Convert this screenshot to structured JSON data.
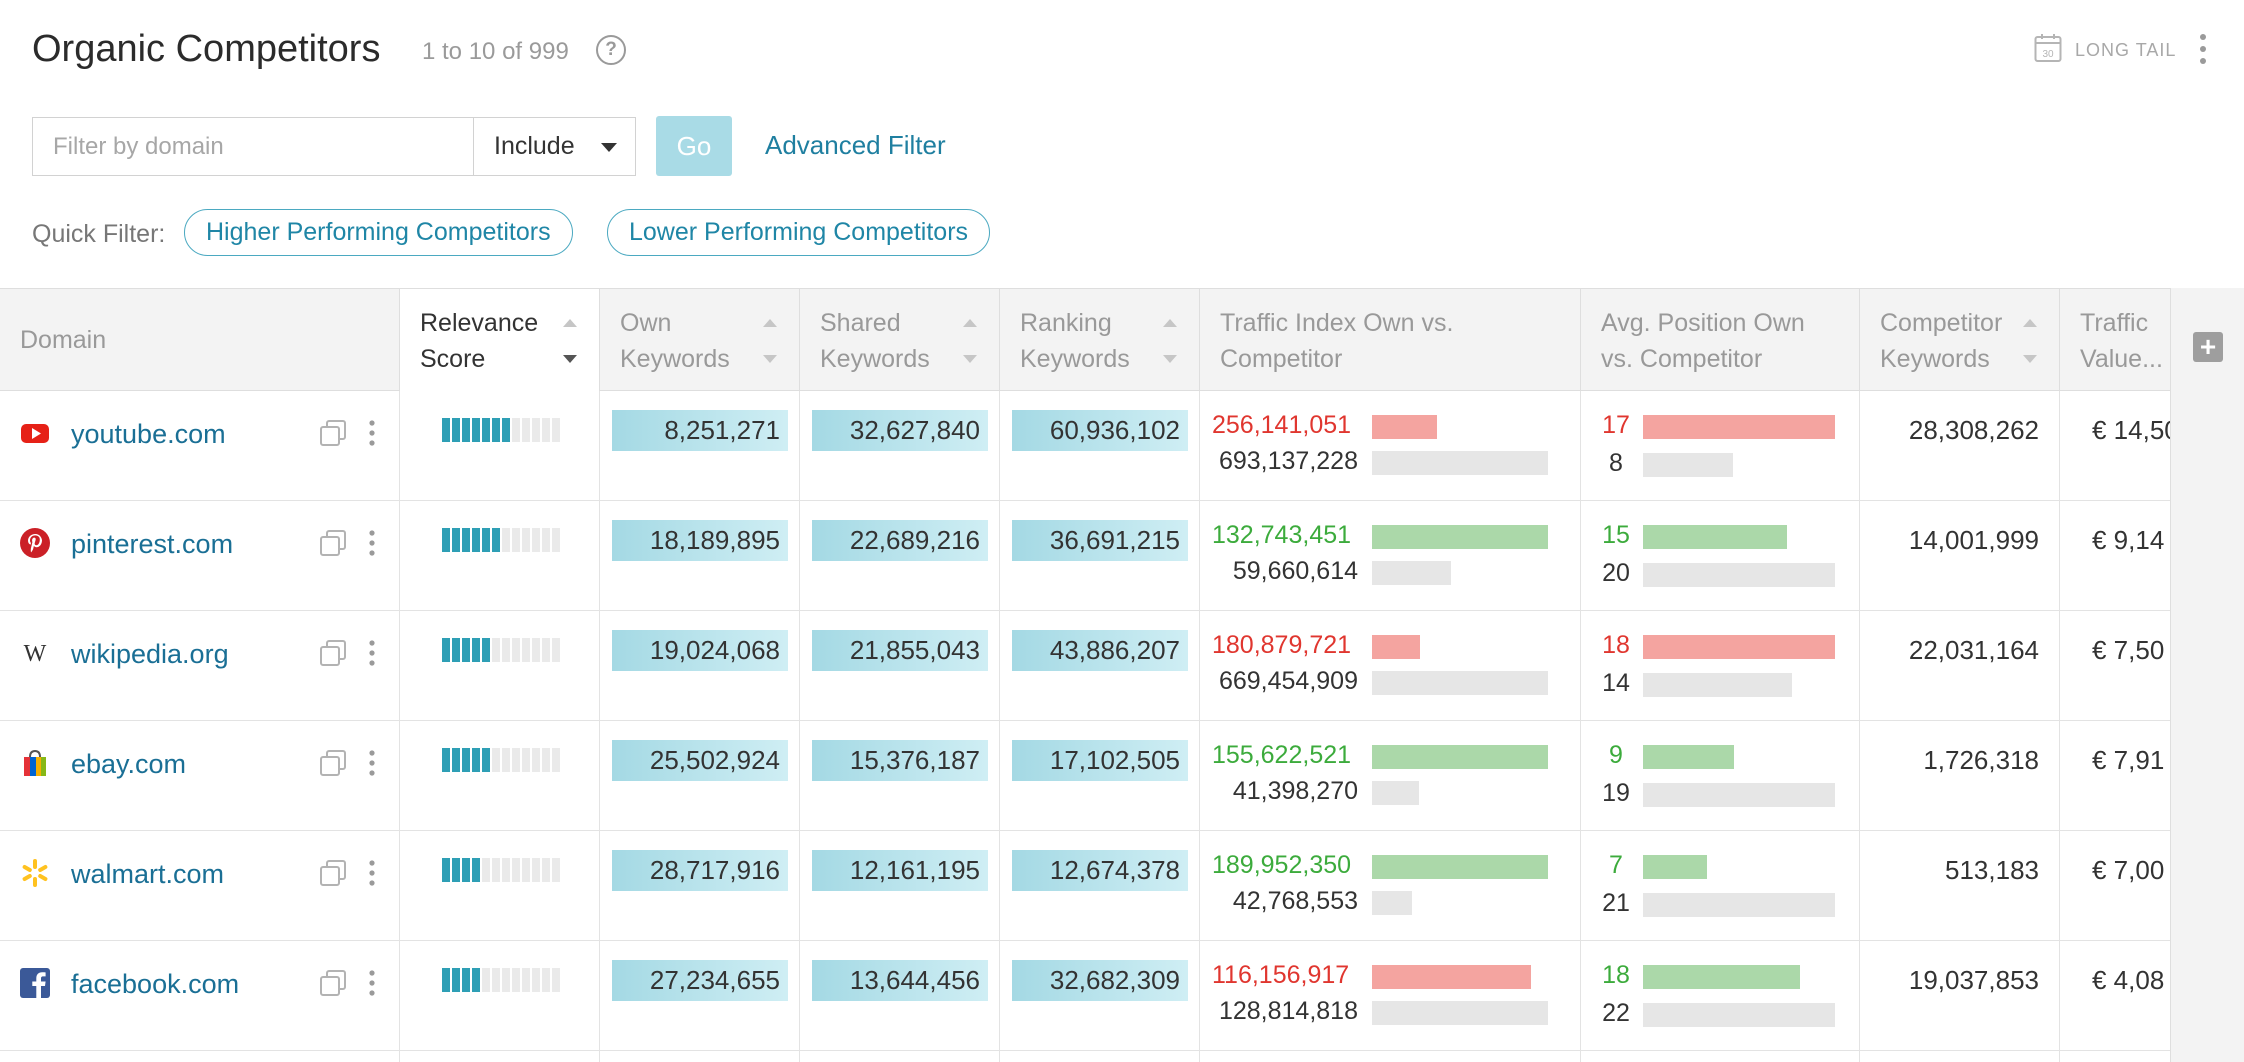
{
  "header": {
    "title": "Organic Competitors",
    "range": "1 to 10 of 999",
    "help": "?",
    "long_tail_label": "LONG TAIL",
    "calendar_number": "30"
  },
  "filter": {
    "placeholder": "Filter by domain",
    "mode": "Include",
    "go_label": "Go",
    "advanced_label": "Advanced Filter"
  },
  "quick_filter": {
    "label": "Quick Filter:",
    "options": [
      "Higher Performing Competitors",
      "Lower Performing Competitors"
    ]
  },
  "columns": {
    "domain": "Domain",
    "relevance_1": "Relevance",
    "relevance_2": "Score",
    "own_1": "Own",
    "own_2": "Keywords",
    "shared_1": "Shared",
    "shared_2": "Keywords",
    "ranking_1": "Ranking",
    "ranking_2": "Keywords",
    "traffic_1": "Traffic Index Own vs.",
    "traffic_2": "Competitor",
    "avgpos_1": "Avg. Position Own",
    "avgpos_2": "vs. Competitor",
    "comp_1": "Competitor",
    "comp_2": "Keywords",
    "value_1": "Traffic",
    "value_2": "Value..."
  },
  "add_column": "+",
  "colors": {
    "accent": "#2e9fb5",
    "link": "#1a6f95",
    "worse": "#e0362f",
    "better": "#3cab3c"
  },
  "rows": [
    {
      "domain": "youtube.com",
      "icon": "youtube-icon",
      "relevance": 7,
      "own": "8,251,271",
      "shared": "32,627,840",
      "ranking": "60,936,102",
      "traffic_own": "256,141,051",
      "traffic_comp": "693,137,228",
      "traffic_status": "worse",
      "pos_own": "17",
      "pos_comp": "8",
      "pos_status": "worse",
      "comp_keywords": "28,308,262",
      "traffic_value": "€ 14,50"
    },
    {
      "domain": "pinterest.com",
      "icon": "pinterest-icon",
      "relevance": 6,
      "own": "18,189,895",
      "shared": "22,689,216",
      "ranking": "36,691,215",
      "traffic_own": "132,743,451",
      "traffic_comp": "59,660,614",
      "traffic_status": "better",
      "pos_own": "15",
      "pos_comp": "20",
      "pos_status": "better",
      "comp_keywords": "14,001,999",
      "traffic_value": "€ 9,14"
    },
    {
      "domain": "wikipedia.org",
      "icon": "wikipedia-icon",
      "relevance": 5,
      "own": "19,024,068",
      "shared": "21,855,043",
      "ranking": "43,886,207",
      "traffic_own": "180,879,721",
      "traffic_comp": "669,454,909",
      "traffic_status": "worse",
      "pos_own": "18",
      "pos_comp": "14",
      "pos_status": "worse",
      "comp_keywords": "22,031,164",
      "traffic_value": "€ 7,50"
    },
    {
      "domain": "ebay.com",
      "icon": "ebay-bag-icon",
      "relevance": 5,
      "own": "25,502,924",
      "shared": "15,376,187",
      "ranking": "17,102,505",
      "traffic_own": "155,622,521",
      "traffic_comp": "41,398,270",
      "traffic_status": "better",
      "pos_own": "9",
      "pos_comp": "19",
      "pos_status": "better",
      "comp_keywords": "1,726,318",
      "traffic_value": "€ 7,91"
    },
    {
      "domain": "walmart.com",
      "icon": "walmart-spark-icon",
      "relevance": 4,
      "own": "28,717,916",
      "shared": "12,161,195",
      "ranking": "12,674,378",
      "traffic_own": "189,952,350",
      "traffic_comp": "42,768,553",
      "traffic_status": "better",
      "pos_own": "7",
      "pos_comp": "21",
      "pos_status": "better",
      "comp_keywords": "513,183",
      "traffic_value": "€ 7,00"
    },
    {
      "domain": "facebook.com",
      "icon": "facebook-icon",
      "relevance": 4,
      "own": "27,234,655",
      "shared": "13,644,456",
      "ranking": "32,682,309",
      "traffic_own": "116,156,917",
      "traffic_comp": "128,814,818",
      "traffic_status": "worse",
      "pos_own": "18",
      "pos_comp": "22",
      "pos_status": "better",
      "comp_keywords": "19,037,853",
      "traffic_value": "€ 4,08"
    }
  ]
}
